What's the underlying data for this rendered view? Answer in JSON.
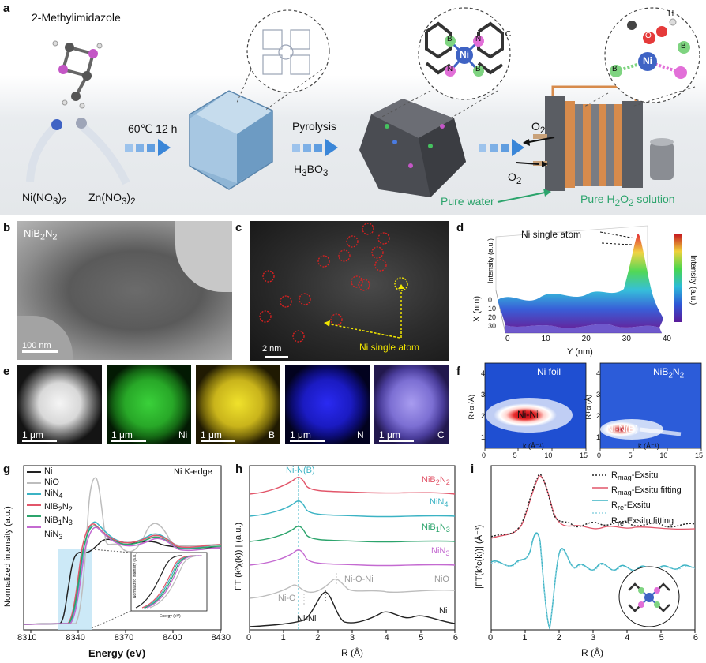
{
  "panel_labels": {
    "a": "a",
    "b": "b",
    "c": "c",
    "d": "d",
    "e": "e",
    "f": "f",
    "g": "g",
    "h": "h",
    "i": "i"
  },
  "panel_a": {
    "precursor": "2-Methylimidazole",
    "salt1": "Ni(NO",
    "salt1_sub": "3",
    "salt1_close": ")",
    "salt1_sub2": "2",
    "salt2": "Zn(NO",
    "salt2_sub": "3",
    "salt2_close": ")",
    "salt2_sub2": "2",
    "step1": "60℃ 12 h",
    "step2": "Pyrolysis",
    "step2b": "H",
    "step2b_sub": "3",
    "step2b_end": "BO",
    "step2b_sub2": "3",
    "o2_top": "O",
    "o2_top_sub": "2",
    "o2_bot": "O",
    "o2_bot_sub": "2",
    "pure_water": "Pure water",
    "pure_h2o2": "Pure H",
    "pure_h2o2_sub": "2",
    "pure_h2o2_mid": "O",
    "pure_h2o2_sub2": "2",
    "pure_h2o2_end": " solution",
    "atom_ni": "Ni",
    "atom_b": "B",
    "atom_n": "N",
    "atom_o": "O",
    "atom_h": "H",
    "atom_c": "C"
  },
  "panel_b": {
    "title": "NiB",
    "title_sub": "2",
    "title_mid": "N",
    "title_sub2": "2",
    "scale": "100 nm"
  },
  "panel_c": {
    "scale": "2 nm",
    "annotation": "Ni single atom"
  },
  "panel_d": {
    "annotation": "Ni single atom",
    "zlabel": "Intensity (a.u.)",
    "xlabel": "X (nm)",
    "ylabel": "Y (nm)",
    "colorbar_label": "Intensity (a.u.)",
    "x_ticks": [
      "0",
      "10",
      "20",
      "30"
    ],
    "y_ticks": [
      "0",
      "10",
      "20",
      "30",
      "40"
    ]
  },
  "panel_e": {
    "scale": "1 μm",
    "channels": [
      "",
      "Ni",
      "B",
      "N",
      "C"
    ]
  },
  "panel_f": {
    "left_title": "Ni foil",
    "right_title": "NiB",
    "right_title_sub": "2",
    "right_title_mid": "N",
    "right_title_sub2": "2",
    "left_feature": "Ni-Ni",
    "right_feature": "Ni-N(B)",
    "ylabel": "R+α (Å)",
    "xlabel": "k (Å⁻¹)",
    "y_ticks": [
      "1",
      "2",
      "3",
      "4"
    ],
    "x_ticks": [
      "0",
      "5",
      "10",
      "15"
    ]
  },
  "chart_data": [
    {
      "id": "g",
      "type": "line",
      "title": "Ni K-edge",
      "xlabel": "Energy (eV)",
      "ylabel": "Normalized intensity (a.u.)",
      "xlim": [
        8300,
        8430
      ],
      "x_ticks": [
        8310,
        8340,
        8370,
        8400,
        8430
      ],
      "legend_position": "top-left",
      "series": [
        {
          "name": "Ni",
          "color": "#222222"
        },
        {
          "name": "NiO",
          "color": "#bdbdbd"
        },
        {
          "name": "NiN4",
          "color": "#3bb3c4"
        },
        {
          "name": "NiB2N2",
          "color": "#e2566a"
        },
        {
          "name": "NiB1N3",
          "color": "#2ca46c"
        },
        {
          "name": "NiN3",
          "color": "#c46ad1"
        }
      ],
      "inset": {
        "xlabel": "Energy (eV)",
        "ylabel": "Normalized intensity (a.u.)",
        "x_ticks": [
          "8330",
          "8335",
          "8340",
          "8345"
        ]
      }
    },
    {
      "id": "h",
      "type": "line",
      "xlabel": "R (Å)",
      "ylabel": "FT (k²χ(k)) | (a.u.)",
      "xlim": [
        0,
        6
      ],
      "x_ticks": [
        0,
        1,
        2,
        3,
        4,
        5,
        6
      ],
      "annotations": [
        "Ni-N(B)",
        "Ni-O",
        "Ni-O-Ni",
        "Ni-Ni"
      ],
      "series": [
        {
          "name": "NiB2N2",
          "color": "#e2566a"
        },
        {
          "name": "NiN4",
          "color": "#3bb3c4"
        },
        {
          "name": "NiB1N3",
          "color": "#2ca46c"
        },
        {
          "name": "NiN3",
          "color": "#c46ad1"
        },
        {
          "name": "NiO",
          "color": "#bdbdbd"
        },
        {
          "name": "Ni",
          "color": "#222222"
        }
      ]
    },
    {
      "id": "i",
      "type": "line",
      "xlabel": "R (Å)",
      "ylabel": "|FT(k²c(k))| (Å⁻³)",
      "xlim": [
        0,
        6
      ],
      "x_ticks": [
        0,
        1,
        2,
        3,
        4,
        5,
        6
      ],
      "legend_position": "top-right",
      "series": [
        {
          "name": "Rmag-Exsitu",
          "color": "#222222"
        },
        {
          "name": "Rmag-Exsitu fitting",
          "color": "#e2566a"
        },
        {
          "name": "Rre-Exsitu",
          "color": "#3bb3c4"
        },
        {
          "name": "Rre-Exsitu fitting",
          "color": "#3bb3c4"
        }
      ]
    }
  ],
  "legend_g": {
    "ni": "Ni",
    "nio": "NiO",
    "nin4": "NiN",
    "nin4_sub": "4",
    "nib2n2": "NiB",
    "nib2n2_sub": "2",
    "nib2n2_mid": "N",
    "nib2n2_sub2": "2",
    "nib1n3": "NiB",
    "nib1n3_sub": "1",
    "nib1n3_mid": "N",
    "nib1n3_sub2": "3",
    "nin3": "NiN",
    "nin3_sub": "3"
  },
  "legend_i": {
    "r1": "R",
    "r1_sub": "mag",
    "r1_end": "-Exsitu",
    "r2": "R",
    "r2_sub": "mag",
    "r2_end": "-Exsitu fitting",
    "r3": "R",
    "r3_sub": "re",
    "r3_end": "-Exsitu",
    "r4": "R",
    "r4_sub": "re",
    "r4_end": "-Exsitu fitting"
  },
  "labels_h": {
    "nib2n2": "NiB",
    "nib2n2_sub": "2",
    "nib2n2_mid": "N",
    "nib2n2_sub2": "2",
    "nin4": "NiN",
    "nin4_sub": "4",
    "nib1n3": "NiB",
    "nib1n3_sub": "1",
    "nib1n3_mid": "N",
    "nib1n3_sub2": "3",
    "nin3": "NiN",
    "nin3_sub": "3",
    "nio": "NiO",
    "ni": "Ni"
  },
  "colors": {
    "ni": "#222222",
    "nio": "#bdbdbd",
    "nin4": "#3bb3c4",
    "nib2n2": "#e2566a",
    "nib1n3": "#2ca46c",
    "nin3": "#c46ad1",
    "green_text": "#2ca46c",
    "yellow": "#f2e600"
  }
}
